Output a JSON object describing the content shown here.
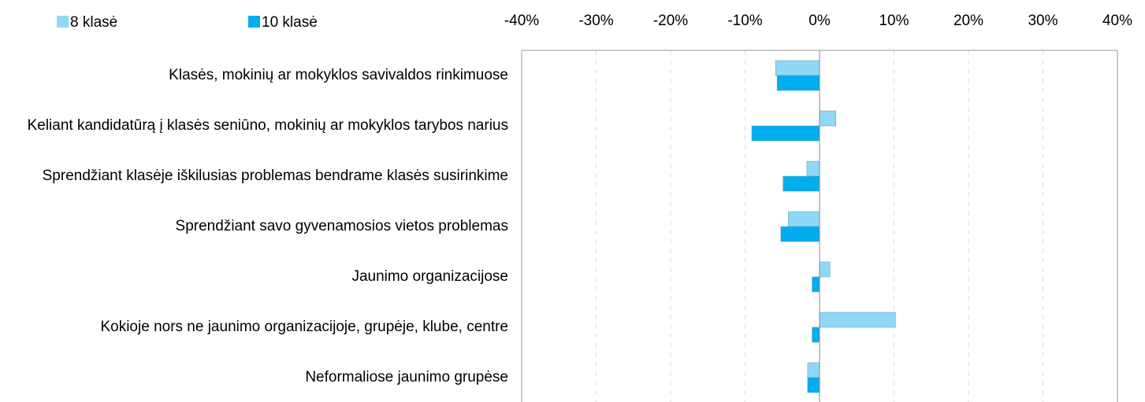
{
  "chart_data": {
    "type": "barh",
    "categories": [
      "Klasės, mokinių ar mokyklos savivaldos rinkimuose",
      "Keliant kandidatūrą į klasės seniūno, mokinių ar mokyklos tarybos narius",
      "Sprendžiant klasėje iškilusias problemas bendrame klasės susirinkime",
      "Sprendžiant savo gyvenamosios vietos  problemas",
      "Jaunimo organizacijose",
      "Kokioje nors ne jaunimo organizacijoje, grupėje, klube, centre",
      "Neformaliose jaunimo grupėse"
    ],
    "series": [
      {
        "name": "8 klasė",
        "color": "#8fd8f5",
        "values": [
          -5.9,
          2.2,
          -1.7,
          -4.2,
          1.4,
          10.2,
          -1.6
        ]
      },
      {
        "name": "10 klasė",
        "color": "#00aeef",
        "values": [
          -5.7,
          -9.1,
          -4.9,
          -5.2,
          -1.0,
          -1.0,
          -1.6
        ]
      }
    ],
    "xlim": [
      -40,
      40
    ],
    "xticks": [
      {
        "value": -40,
        "label": "-40%"
      },
      {
        "value": -30,
        "label": "-30%"
      },
      {
        "value": -20,
        "label": "-20%"
      },
      {
        "value": -10,
        "label": "-10%"
      },
      {
        "value": 0,
        "label": "0%"
      },
      {
        "value": 10,
        "label": "10%"
      },
      {
        "value": 20,
        "label": "20%"
      },
      {
        "value": 30,
        "label": "30%"
      },
      {
        "value": 40,
        "label": "40%"
      }
    ],
    "grid": true
  }
}
